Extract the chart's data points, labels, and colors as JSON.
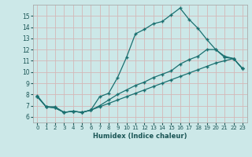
{
  "bg_color": "#cce8e8",
  "grid_color": "#c8d8d8",
  "line_color": "#1a7070",
  "xlabel": "Humidex (Indice chaleur)",
  "xlim": [
    -0.5,
    23.5
  ],
  "ylim": [
    5.5,
    16.0
  ],
  "xticks": [
    0,
    1,
    2,
    3,
    4,
    5,
    6,
    7,
    8,
    9,
    10,
    11,
    12,
    13,
    14,
    15,
    16,
    17,
    18,
    19,
    20,
    21,
    22,
    23
  ],
  "yticks": [
    6,
    7,
    8,
    9,
    10,
    11,
    12,
    13,
    14,
    15
  ],
  "line1_x": [
    0,
    1,
    2,
    3,
    4,
    5,
    6,
    7,
    8,
    9,
    10,
    11,
    12,
    13,
    14,
    15,
    16,
    17,
    18,
    19,
    20,
    21,
    22,
    23
  ],
  "line1_y": [
    7.9,
    6.9,
    6.9,
    6.4,
    6.5,
    6.4,
    6.6,
    7.8,
    8.1,
    9.5,
    11.3,
    13.4,
    13.8,
    14.3,
    14.5,
    15.1,
    15.7,
    14.7,
    13.9,
    12.9,
    12.0,
    11.3,
    11.2,
    10.3
  ],
  "line2_x": [
    0,
    1,
    2,
    3,
    4,
    5,
    6,
    7,
    8,
    9,
    10,
    11,
    12,
    13,
    14,
    15,
    16,
    17,
    18,
    19,
    20,
    21,
    22,
    23
  ],
  "line2_y": [
    7.8,
    6.9,
    6.8,
    6.4,
    6.5,
    6.4,
    6.6,
    7.0,
    7.5,
    8.0,
    8.4,
    8.8,
    9.1,
    9.5,
    9.8,
    10.1,
    10.7,
    11.1,
    11.4,
    12.0,
    12.0,
    11.4,
    11.2,
    10.3
  ],
  "line3_x": [
    0,
    1,
    2,
    3,
    4,
    5,
    6,
    7,
    8,
    9,
    10,
    11,
    12,
    13,
    14,
    15,
    16,
    17,
    18,
    19,
    20,
    21,
    22,
    23
  ],
  "line3_y": [
    7.8,
    6.9,
    6.8,
    6.4,
    6.5,
    6.4,
    6.6,
    6.9,
    7.2,
    7.5,
    7.8,
    8.1,
    8.4,
    8.7,
    9.0,
    9.3,
    9.6,
    9.9,
    10.2,
    10.5,
    10.8,
    11.0,
    11.2,
    10.3
  ]
}
